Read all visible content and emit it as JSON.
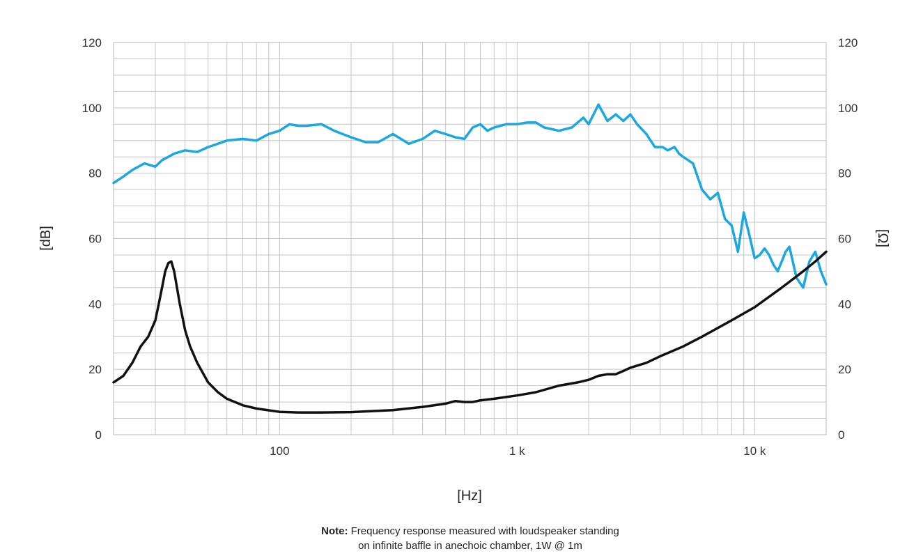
{
  "chart_data": {
    "type": "line",
    "x_scale": "log",
    "xlim": [
      20,
      20000
    ],
    "ylim_left": [
      0,
      120
    ],
    "ylim_right": [
      0,
      120
    ],
    "grid": true,
    "xlabel": "[Hz]",
    "ylabel_left": "[dB]",
    "ylabel_right": "[Ω]",
    "x_ticks": [
      {
        "value": 100,
        "label": "100"
      },
      {
        "value": 1000,
        "label": "1 k"
      },
      {
        "value": 10000,
        "label": "10 k"
      }
    ],
    "y_ticks": [
      0,
      20,
      40,
      60,
      80,
      100,
      120
    ],
    "series": [
      {
        "color": "#1aa8e0",
        "axis": "left",
        "x": [
          20,
          22,
          24,
          27,
          30,
          32,
          34,
          36,
          40,
          45,
          50,
          55,
          60,
          70,
          80,
          90,
          100,
          110,
          120,
          130,
          150,
          170,
          200,
          230,
          260,
          300,
          350,
          400,
          450,
          500,
          550,
          600,
          650,
          700,
          750,
          800,
          900,
          1000,
          1100,
          1200,
          1300,
          1500,
          1700,
          1900,
          2000,
          2200,
          2400,
          2600,
          2800,
          3000,
          3200,
          3500,
          3800,
          4100,
          4300,
          4600,
          4800,
          5000,
          5500,
          6000,
          6500,
          7000,
          7500,
          8000,
          8500,
          9000,
          9500,
          10000,
          10500,
          11000,
          11500,
          12000,
          12500,
          13000,
          13500,
          14000,
          15000,
          16000,
          17000,
          18000,
          19000,
          20000
        ],
        "y": [
          77,
          79,
          81,
          83,
          82,
          84,
          85,
          86,
          87,
          86.5,
          88,
          89,
          90,
          90.5,
          90,
          92,
          93,
          95,
          94.5,
          94.5,
          95,
          93,
          91,
          89.5,
          89.5,
          92,
          89,
          90.5,
          93,
          92,
          91,
          90.5,
          94,
          95,
          93,
          94,
          95,
          95,
          95.5,
          95.5,
          94,
          93,
          94,
          97,
          95,
          101,
          96,
          98,
          96,
          98,
          95,
          92,
          88,
          88,
          87,
          88,
          86,
          85,
          83,
          75,
          72,
          74,
          66,
          64,
          56,
          68,
          61,
          54,
          55,
          57,
          55,
          52,
          50,
          53,
          56,
          57.5,
          48,
          45,
          53,
          56,
          50,
          46
        ]
      },
      {
        "color": "#111111",
        "axis": "right",
        "x": [
          20,
          22,
          24,
          26,
          28,
          30,
          31,
          32,
          33,
          34,
          35,
          36,
          38,
          40,
          42,
          45,
          50,
          55,
          60,
          70,
          80,
          100,
          120,
          150,
          200,
          300,
          400,
          500,
          550,
          600,
          650,
          700,
          800,
          1000,
          1200,
          1500,
          1800,
          2000,
          2200,
          2400,
          2600,
          2800,
          3000,
          3500,
          4000,
          5000,
          6000,
          8000,
          10000,
          13000,
          16000,
          18000,
          20000
        ],
        "y": [
          16,
          18,
          22,
          27,
          30,
          35,
          40,
          45,
          50,
          52.5,
          53,
          50,
          40,
          32,
          27,
          22,
          16,
          13,
          11,
          9,
          8,
          7,
          6.8,
          6.8,
          6.9,
          7.5,
          8.5,
          9.5,
          10.3,
          10,
          10,
          10.5,
          11,
          12,
          13,
          15,
          16,
          16.8,
          18,
          18.5,
          18.5,
          19.5,
          20.5,
          22,
          24,
          27,
          30,
          35,
          39,
          45,
          50,
          53,
          56
        ]
      }
    ],
    "note_bold": "Note:",
    "note_line1": "Frequency response measured with loudspeaker standing",
    "note_line2": "on infinite baffle in anechoic chamber, 1W @ 1m"
  }
}
